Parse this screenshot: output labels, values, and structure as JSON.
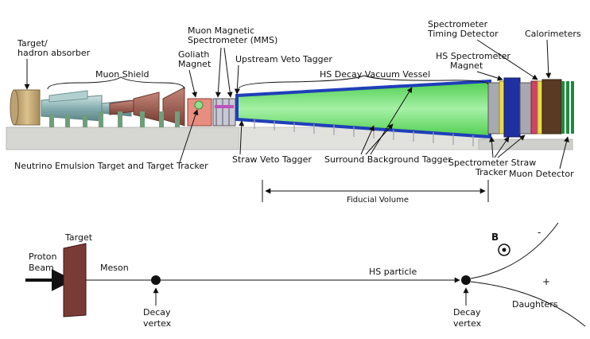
{
  "detector": {
    "labels": {
      "target_line1": "Target/",
      "target_line2": "hadron absorber",
      "muon_shield": "Muon Shield",
      "goliath_line1": "Goliath",
      "goliath_line2": "Magnet",
      "mms_line1": "Muon Magnetic",
      "mms_line2": "Spectrometer (MMS)",
      "upstream_veto": "Upstream Veto Tagger",
      "vessel": "HS Decay Vacuum Vessel",
      "hs_magnet_line1": "HS Spectrometer",
      "hs_magnet_line2": "Magnet",
      "timing_line1": "Spectrometer",
      "timing_line2": "Timing Detector",
      "calorimeters": "Calorimeters",
      "emulsion": "Neutrino Emulsion Target and Target Tracker",
      "straw_veto": "Straw Veto Tagger",
      "surround_bg": "Surround Background Tagger",
      "straw_tracker_line1": "Spectrometer Straw",
      "straw_tracker_line2": "Tracker",
      "muon_detector": "Muon Detector",
      "fiducial": "Fiducial Volume"
    },
    "colors": {
      "target": "#c9ab74",
      "shield": "#8fb8b8",
      "shield_red": "#9b5f52",
      "support": "#6f9e7a",
      "floor": "#d2d2cf",
      "vessel_green": "#7fe07f",
      "vessel_blue": "#1f3fb8",
      "magnet_blue": "#2030a0",
      "yellow": "#e8d94a",
      "calo_brown": "#5a3a25",
      "muon_det": "#1e8a3c"
    }
  },
  "schematic": {
    "labels": {
      "proton_line1": "Proton",
      "proton_line2": "Beam",
      "target": "Target",
      "meson": "Meson",
      "decay1_line1": "Decay",
      "decay1_line2": "vertex",
      "hs_particle": "HS particle",
      "decay2_line1": "Decay",
      "decay2_line2": "vertex",
      "b_field": "B",
      "minus": "-",
      "plus": "+",
      "daughters": "Daughters"
    },
    "colors": {
      "target": "#7a3a36"
    }
  }
}
